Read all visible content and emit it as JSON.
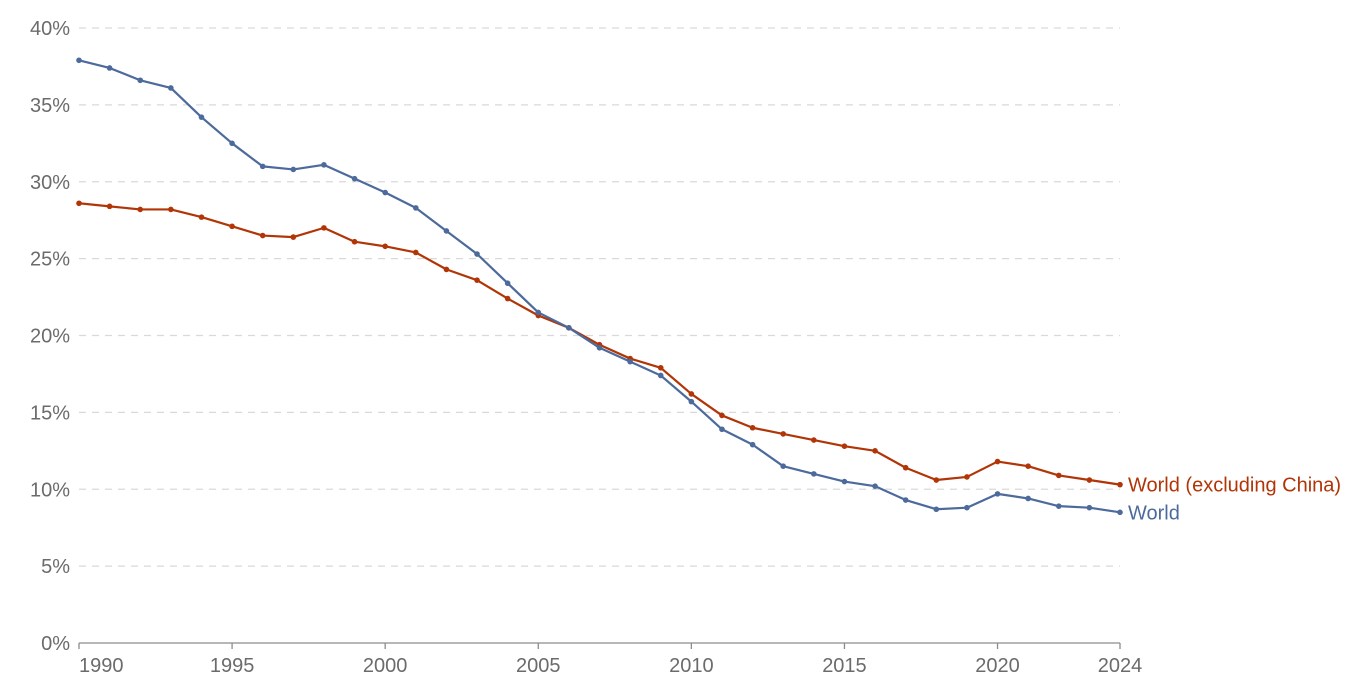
{
  "chart_data": {
    "type": "line",
    "title": "",
    "xlabel": "",
    "ylabel": "",
    "xlim": [
      1990,
      2024
    ],
    "ylim": [
      0,
      40
    ],
    "y_unit": "%",
    "grid": true,
    "legend": "inline labels at line ends",
    "x_ticks": [
      1990,
      1995,
      2000,
      2005,
      2010,
      2015,
      2020,
      2024
    ],
    "y_ticks": [
      0,
      5,
      10,
      15,
      20,
      25,
      30,
      35,
      40
    ],
    "x_tick_labels": [
      "1990",
      "1995",
      "2000",
      "2005",
      "2010",
      "2015",
      "2020",
      "2024"
    ],
    "y_tick_labels": [
      "0%",
      "5%",
      "10%",
      "15%",
      "20%",
      "25%",
      "30%",
      "35%",
      "40%"
    ],
    "x": [
      1990,
      1991,
      1992,
      1993,
      1994,
      1995,
      1996,
      1997,
      1998,
      1999,
      2000,
      2001,
      2002,
      2003,
      2004,
      2005,
      2006,
      2007,
      2008,
      2009,
      2010,
      2011,
      2012,
      2013,
      2014,
      2015,
      2016,
      2017,
      2018,
      2019,
      2020,
      2021,
      2022,
      2023,
      2024
    ],
    "series": [
      {
        "name": "World",
        "color": "#4C6A9C",
        "values": [
          37.9,
          37.4,
          36.6,
          36.1,
          34.2,
          32.5,
          31.0,
          30.8,
          31.1,
          30.2,
          29.3,
          28.3,
          26.8,
          25.3,
          23.4,
          21.5,
          20.5,
          19.2,
          18.3,
          17.4,
          15.7,
          13.9,
          12.9,
          11.5,
          11.0,
          10.5,
          10.2,
          9.3,
          8.7,
          8.8,
          9.7,
          9.4,
          8.9,
          8.8,
          8.5
        ]
      },
      {
        "name": "World (excluding China)",
        "color": "#B13507",
        "values": [
          28.6,
          28.4,
          28.2,
          28.2,
          27.7,
          27.1,
          26.5,
          26.4,
          27.0,
          26.1,
          25.8,
          25.4,
          24.3,
          23.6,
          22.4,
          21.3,
          20.5,
          19.4,
          18.5,
          17.9,
          16.2,
          14.8,
          14.0,
          13.6,
          13.2,
          12.8,
          12.5,
          11.4,
          10.6,
          10.8,
          11.8,
          11.5,
          10.9,
          10.6,
          10.3
        ]
      }
    ]
  }
}
